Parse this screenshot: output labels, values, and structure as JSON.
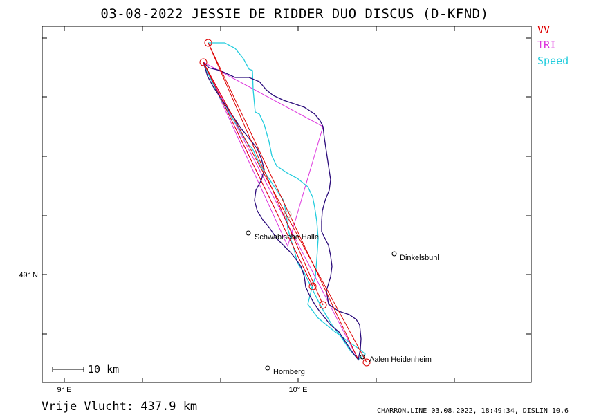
{
  "title": "03-08-2022   JESSIE DE RIDDER   DUO DISCUS (D-KFND)",
  "legend": [
    {
      "label": "VV",
      "color": "#dd0000"
    },
    {
      "label": "TRI",
      "color": "#dd33dd"
    },
    {
      "label": "Speed",
      "color": "#22ccdd"
    }
  ],
  "track_color": "#2a0a7a",
  "axes": {
    "x_ticks": [
      {
        "label": "9° E",
        "lon": 9.0
      },
      {
        "label": "10° E",
        "lon": 10.0
      }
    ],
    "y_ticks": [
      {
        "label": "49° N",
        "lat": 49.0
      }
    ]
  },
  "places": [
    {
      "name": "Schwabische Halle",
      "lon": 9.77,
      "lat": 49.12
    },
    {
      "name": "Dinkelsbuhl",
      "lon": 10.4,
      "lat": 49.07
    },
    {
      "name": "Aalen Heidenheim",
      "lon": 10.27,
      "lat": 48.77
    },
    {
      "name": "Hornberg",
      "lon": 9.86,
      "lat": 48.73
    }
  ],
  "scale_label": "10 km",
  "distance_label": "Vrije Vlucht:  437.9 km",
  "footer": "CHARRON.LINE 03.08.2022, 18:49:34, DISLIN 10.6"
}
